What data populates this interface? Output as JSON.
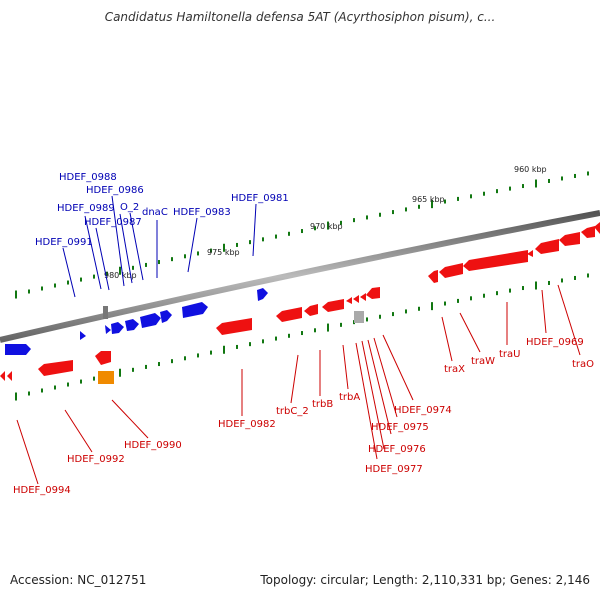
{
  "title": "Candidatus Hamiltonella defensa 5AT (Acyrthosiphon pisum), c...",
  "footer": {
    "accession": "Accession: NC_012751",
    "topology": "Topology: circular; Length: 2,110,331 bp; Genes: 2,146"
  },
  "colors": {
    "forward_gene": "#1010e0",
    "reverse_gene": "#ee1111",
    "rna_gene": "#f08a00",
    "pseudo_gene": "#999999",
    "backbone": "#888888",
    "tick": "#117711",
    "label_blue": "#0000b4",
    "label_red": "#cc0000"
  },
  "scale_labels": [
    "980 kbp",
    "975 kbp",
    "970 kbp",
    "965 kbp",
    "960 kbp"
  ],
  "forward_labels": [
    "HDEF_0988",
    "HDEF_0986",
    "HDEF_0989",
    "O_2",
    "HDEF_0987",
    "dnaC",
    "HDEF_0983",
    "HDEF_0981",
    "HDEF_0991"
  ],
  "reverse_labels": [
    "HDEF_0994",
    "HDEF_0992",
    "HDEF_0990",
    "HDEF_0982",
    "trbC_2",
    "trbB",
    "trbA",
    "HDEF_0974",
    "HDEF_0975",
    "HDEF_0976",
    "HDEF_0977",
    "traX",
    "traW",
    "traU",
    "HDEF_0969",
    "traO"
  ]
}
